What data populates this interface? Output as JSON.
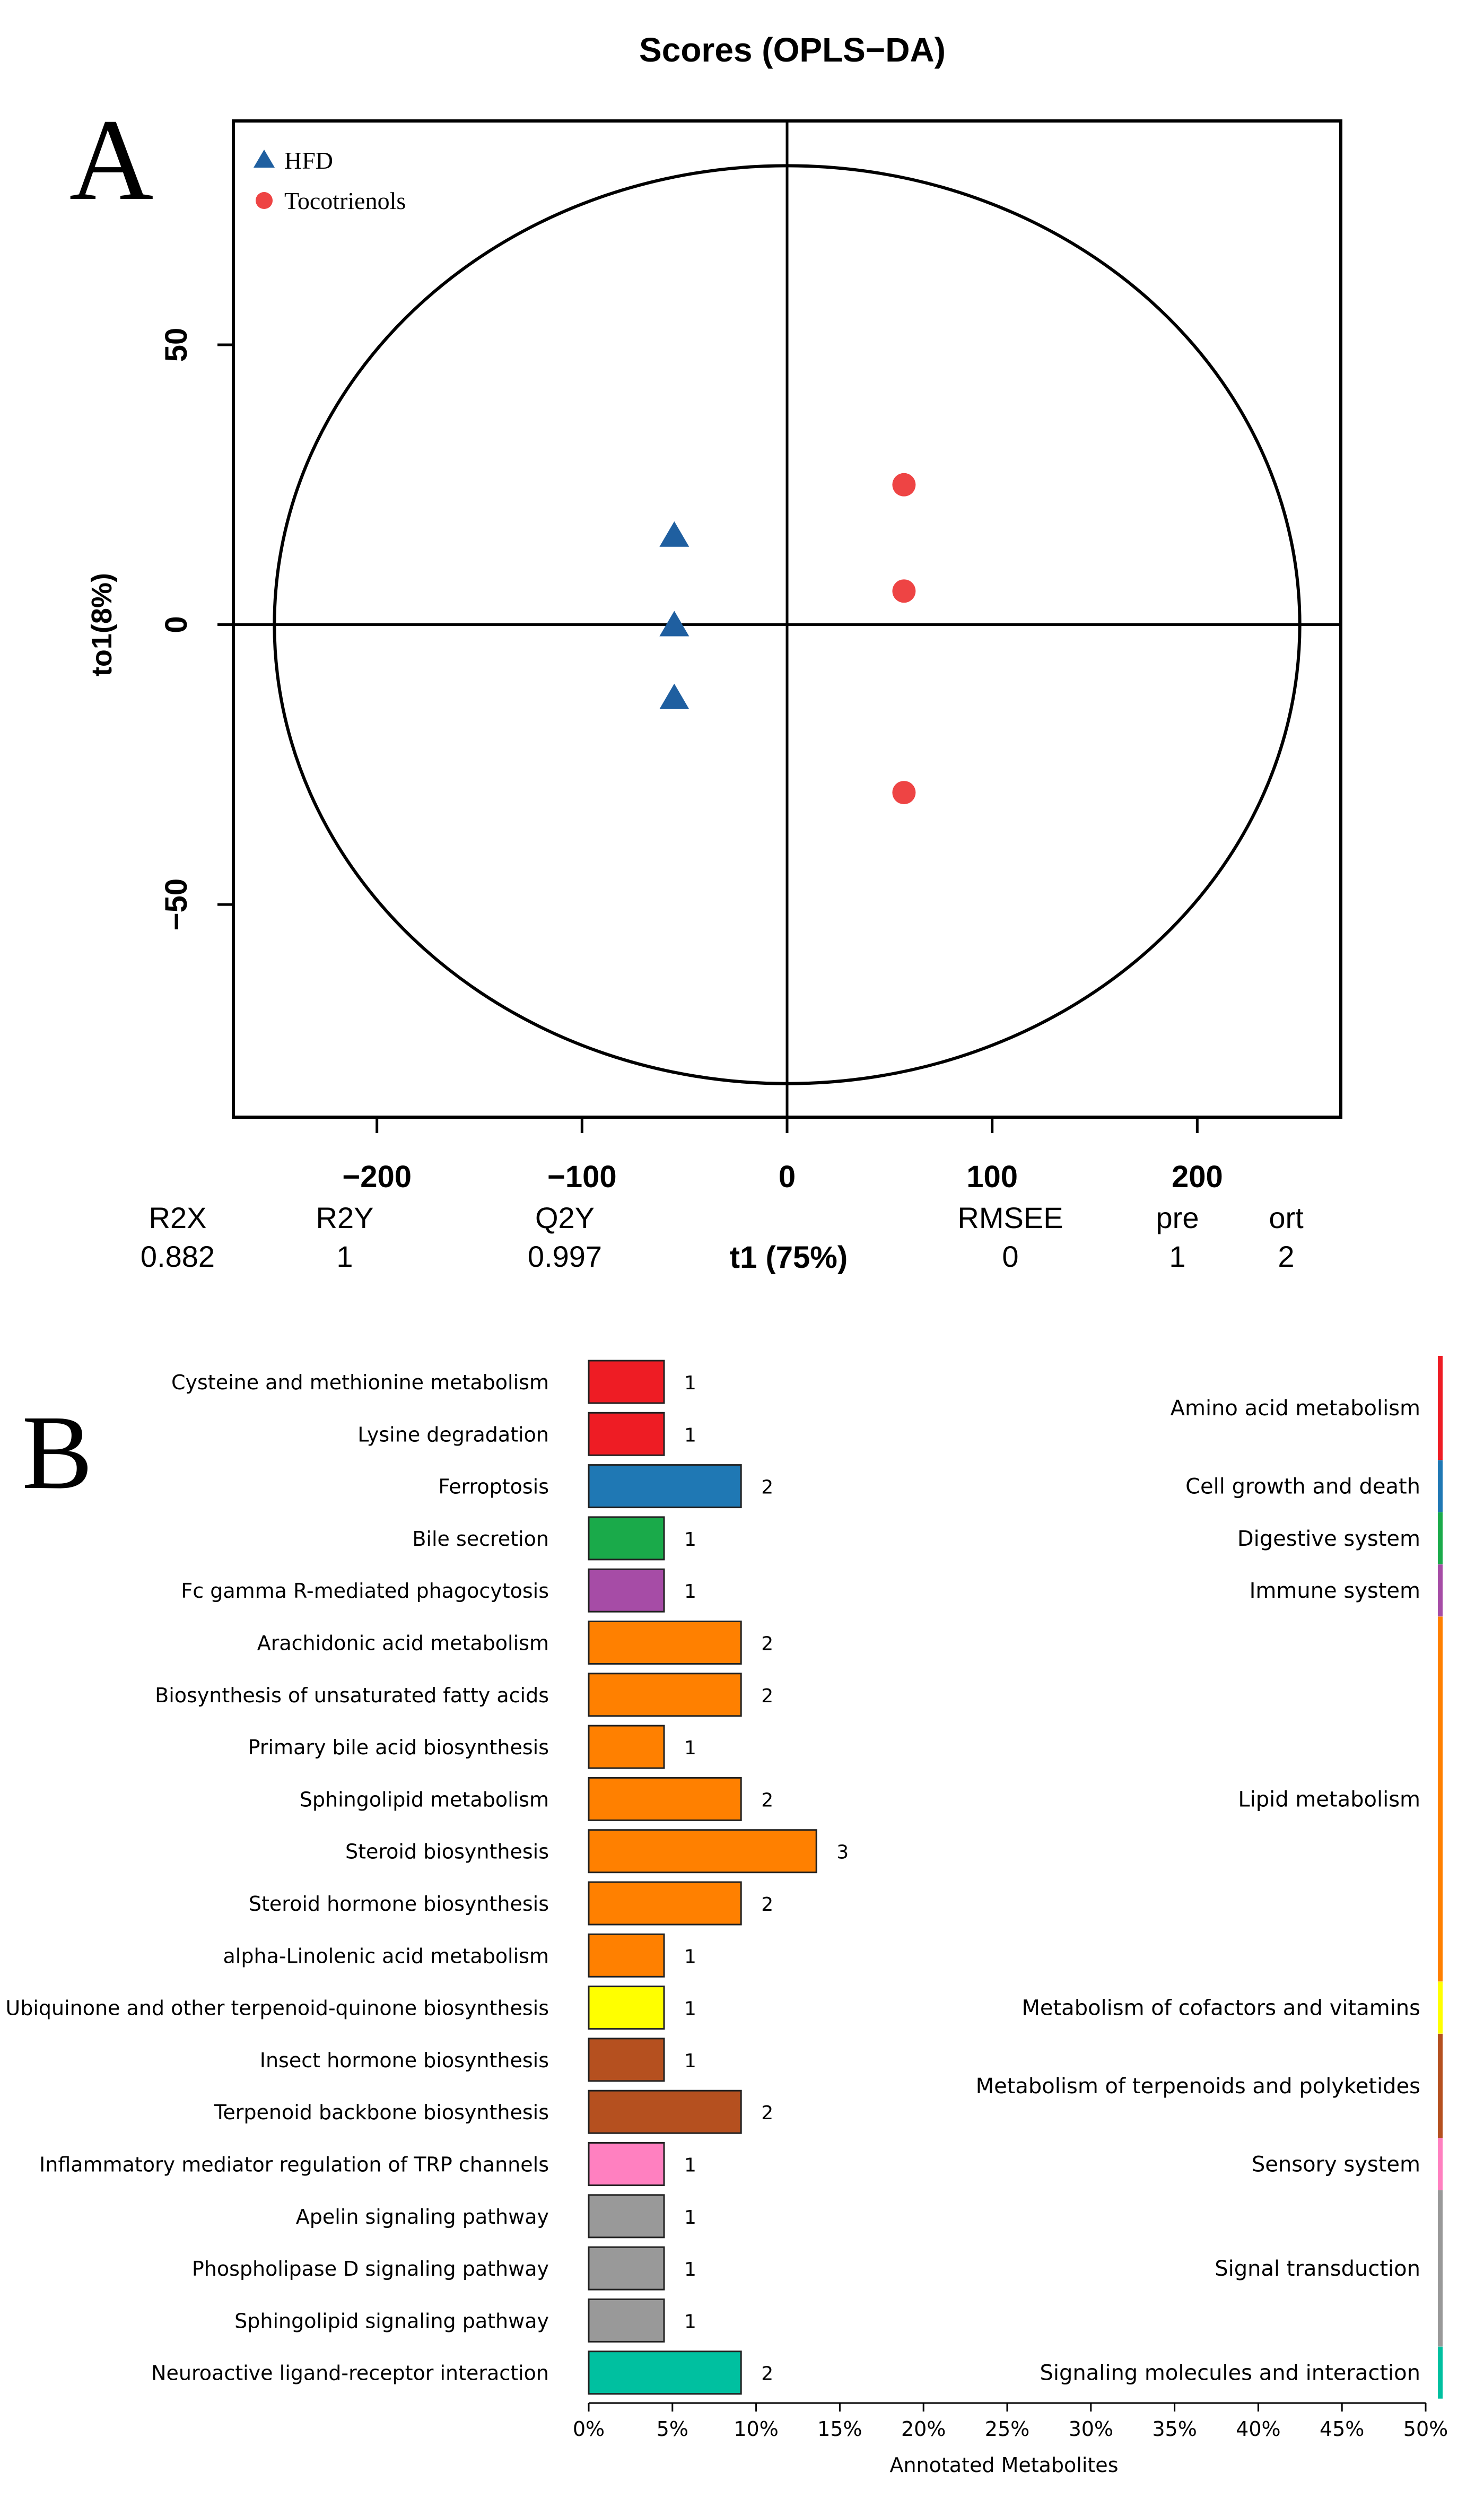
{
  "panels": [
    {
      "letter": "A"
    },
    {
      "letter": "B"
    }
  ],
  "chart_data": [
    {
      "type": "scatter",
      "title": "Scores (OPLS−DA)",
      "xlabel": "t1 (75%)",
      "ylabel": "to1(8%)",
      "xlim": [
        -270,
        270
      ],
      "ylim": [
        -88,
        90
      ],
      "xticks": [
        -200,
        -100,
        0,
        100,
        200
      ],
      "xtick_labels": [
        "−200",
        "−100",
        "0",
        "100",
        "200"
      ],
      "yticks": [
        -50,
        0,
        50
      ],
      "ytick_labels": [
        "−50",
        "0",
        "50"
      ],
      "hotelling_ellipse": {
        "semi_x": 250,
        "semi_y": 82
      },
      "legend": {
        "position": "top-left"
      },
      "series": [
        {
          "name": "HFD",
          "marker": "triangle",
          "color": "#1f5fa0",
          "points": [
            {
              "x": -55,
              "y": 16
            },
            {
              "x": -55,
              "y": 0
            },
            {
              "x": -55,
              "y": -13
            }
          ]
        },
        {
          "name": "Tocotrienols",
          "marker": "circle",
          "color": "#ee4444",
          "points": [
            {
              "x": 57,
              "y": 25
            },
            {
              "x": 57,
              "y": 6
            },
            {
              "x": 57,
              "y": -30
            }
          ]
        }
      ],
      "stats": [
        {
          "label": "R2X",
          "value": "0.882"
        },
        {
          "label": "R2Y",
          "value": "1"
        },
        {
          "label": "Q2Y",
          "value": "0.997"
        },
        {
          "label": "RMSEE",
          "value": "0"
        },
        {
          "label": "pre",
          "value": "1"
        },
        {
          "label": "ort",
          "value": "2"
        }
      ]
    },
    {
      "type": "bar",
      "orientation": "horizontal",
      "xlabel": "Annotated Metabolites",
      "xlim": [
        0,
        50
      ],
      "xticks": [
        0,
        5,
        10,
        15,
        20,
        25,
        30,
        35,
        40,
        45,
        50
      ],
      "xtick_labels": [
        "0%",
        "5%",
        "10%",
        "15%",
        "20%",
        "25%",
        "30%",
        "35%",
        "40%",
        "45%",
        "50%"
      ],
      "categories": [
        "Cysteine and methionine metabolism",
        "Lysine degradation",
        "Ferroptosis",
        "Bile secretion",
        "Fc gamma R-mediated phagocytosis",
        "Arachidonic acid metabolism",
        "Biosynthesis of unsaturated fatty acids",
        "Primary bile acid biosynthesis",
        "Sphingolipid metabolism",
        "Steroid biosynthesis",
        "Steroid hormone biosynthesis",
        "alpha-Linolenic acid metabolism",
        "Ubiquinone and other terpenoid-quinone biosynthesis",
        "Insect hormone biosynthesis",
        "Terpenoid backbone biosynthesis",
        "Inflammatory mediator regulation of TRP channels",
        "Apelin signaling pathway",
        "Phospholipase D signaling pathway",
        "Sphingolipid signaling pathway",
        "Neuroactive ligand-receptor interaction"
      ],
      "counts": [
        1,
        1,
        2,
        1,
        1,
        2,
        2,
        1,
        2,
        3,
        2,
        1,
        1,
        1,
        2,
        1,
        1,
        1,
        1,
        2
      ],
      "values_percent": [
        4.5,
        4.5,
        9.1,
        4.5,
        4.5,
        9.1,
        9.1,
        4.5,
        9.1,
        13.6,
        9.1,
        4.5,
        4.5,
        4.5,
        9.1,
        4.5,
        4.5,
        4.5,
        4.5,
        9.1
      ],
      "groups": [
        {
          "name": "Amino acid metabolism",
          "start": 0,
          "end": 1,
          "color": "#ee1c24"
        },
        {
          "name": "Cell growth and death",
          "start": 2,
          "end": 2,
          "color": "#1f78b4"
        },
        {
          "name": "Digestive system",
          "start": 3,
          "end": 3,
          "color": "#1aaa4a"
        },
        {
          "name": "Immune system",
          "start": 4,
          "end": 4,
          "color": "#a64ca6"
        },
        {
          "name": "Lipid metabolism",
          "start": 5,
          "end": 11,
          "color": "#ff8000"
        },
        {
          "name": "Metabolism of cofactors and vitamins",
          "start": 12,
          "end": 12,
          "color": "#ffff00"
        },
        {
          "name": "Metabolism of terpenoids and polyketides",
          "start": 13,
          "end": 14,
          "color": "#b5501f"
        },
        {
          "name": "Sensory system",
          "start": 15,
          "end": 15,
          "color": "#ff80c0"
        },
        {
          "name": "Signal transduction",
          "start": 16,
          "end": 18,
          "color": "#999999"
        },
        {
          "name": "Signaling molecules and interaction",
          "start": 19,
          "end": 19,
          "color": "#00c0a0"
        }
      ]
    }
  ]
}
